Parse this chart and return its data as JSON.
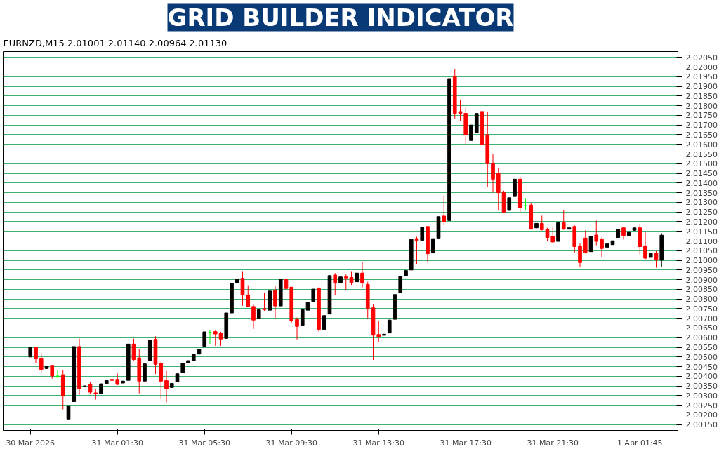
{
  "chart_data": {
    "type": "candlestick",
    "title": "GRID BUILDER INDICATOR",
    "subtitle": "EURNZD,M15  2.01001 2.01140 2.00964 2.01130",
    "categories": [
      "30 Mar 2026",
      null,
      null,
      null,
      null,
      null,
      null,
      null,
      null,
      null,
      null,
      null,
      null,
      null,
      null,
      null,
      "31 Mar 01:30",
      null,
      null,
      null,
      null,
      null,
      null,
      null,
      null,
      null,
      null,
      null,
      null,
      null,
      null,
      null,
      "31 Mar 05:30",
      null,
      null,
      null,
      null,
      null,
      null,
      null,
      null,
      null,
      null,
      null,
      null,
      null,
      null,
      null,
      "31 Mar 09:30",
      null,
      null,
      null,
      null,
      null,
      null,
      null,
      null,
      null,
      null,
      null,
      null,
      null,
      null,
      null,
      "31 Mar 13:30",
      null,
      null,
      null,
      null,
      null,
      null,
      null,
      null,
      null,
      null,
      null,
      null,
      null,
      null,
      null,
      "31 Mar 17:30",
      null,
      null,
      null,
      null,
      null,
      null,
      null,
      null,
      null,
      null,
      null,
      null,
      null,
      null,
      null,
      "31 Mar 21:30",
      null,
      null,
      null,
      null,
      null,
      null,
      null,
      null,
      null,
      null,
      null,
      null,
      null,
      null,
      null,
      "1 Apr 01:45",
      null,
      null,
      null,
      null
    ],
    "ohlc": [
      [
        2.005,
        2.0055,
        2.005,
        2.0055
      ],
      [
        2.0055,
        2.0055,
        2.0047,
        2.0049
      ],
      [
        2.0049,
        2.0052,
        2.0042,
        2.00435
      ],
      [
        2.0044,
        2.00454,
        2.0044,
        2.00454
      ],
      [
        2.00457,
        2.00457,
        2.00388,
        2.00402
      ],
      [
        2.004,
        2.0043,
        2.00391,
        2.004
      ],
      [
        2.00408,
        2.0043,
        2.00229,
        2.00301
      ],
      [
        2.00179,
        2.00248,
        2.00179,
        2.00248
      ],
      [
        2.00269,
        2.00554,
        2.00269,
        2.00554
      ],
      [
        2.00554,
        2.00595,
        2.00304,
        2.00335
      ],
      [
        2.0035,
        2.0035,
        2.0035,
        2.0035
      ],
      [
        2.00358,
        2.00371,
        2.00308,
        2.00318
      ],
      [
        2.00314,
        2.00334,
        2.00279,
        2.00309
      ],
      [
        2.00309,
        2.00361,
        2.00309,
        2.00361
      ],
      [
        2.00362,
        2.00378,
        2.00362,
        2.00378
      ],
      [
        2.00384,
        2.00411,
        2.00321,
        2.00379
      ],
      [
        2.00384,
        2.00414,
        2.00354,
        2.00358
      ],
      [
        2.00365,
        2.00375,
        2.00365,
        2.00375
      ],
      [
        2.00379,
        2.00567,
        2.00379,
        2.00567
      ],
      [
        2.00567,
        2.00595,
        2.00482,
        2.00487
      ],
      [
        2.00495,
        2.00541,
        2.00312,
        2.00375
      ],
      [
        2.00375,
        2.00464,
        2.00375,
        2.00464
      ],
      [
        2.00482,
        2.00587,
        2.00482,
        2.00587
      ],
      [
        2.00591,
        2.00607,
        2.00412,
        2.00462
      ],
      [
        2.00467,
        2.00476,
        2.00282,
        2.00375
      ],
      [
        2.00378,
        2.00428,
        2.00265,
        2.00335
      ],
      [
        2.00342,
        2.00363,
        2.00342,
        2.00363
      ],
      [
        2.00372,
        2.00413,
        2.00372,
        2.00413
      ],
      [
        2.00419,
        2.00467,
        2.00419,
        2.00467
      ],
      [
        2.00469,
        2.00481,
        2.00469,
        2.00481
      ],
      [
        2.00481,
        2.00514,
        2.00481,
        2.00514
      ],
      [
        2.00515,
        2.0054,
        2.00515,
        2.0054
      ],
      [
        2.00555,
        2.0063,
        2.00555,
        2.0063
      ],
      [
        2.00627,
        2.0064,
        2.00566,
        2.00627
      ],
      [
        2.00631,
        2.0064,
        2.00558,
        2.00619
      ],
      [
        2.00621,
        2.0063,
        2.00558,
        2.00593
      ],
      [
        2.00596,
        2.00728,
        2.00596,
        2.00728
      ],
      [
        2.00728,
        2.00881,
        2.00728,
        2.00881
      ],
      [
        2.00884,
        2.00904,
        2.00884,
        2.00904
      ],
      [
        2.00907,
        2.00944,
        2.00765,
        2.00822
      ],
      [
        2.00821,
        2.00871,
        2.00759,
        2.00759
      ],
      [
        2.00761,
        2.0077,
        2.00645,
        2.00691
      ],
      [
        2.007,
        2.00744,
        2.007,
        2.00744
      ],
      [
        2.0075,
        2.00831,
        2.00739,
        2.00745
      ],
      [
        2.00742,
        2.00841,
        2.00742,
        2.00841
      ],
      [
        2.00846,
        2.00868,
        2.007,
        2.00764
      ],
      [
        2.00764,
        2.00902,
        2.00764,
        2.00902
      ],
      [
        2.009,
        2.00904,
        2.00824,
        2.00854
      ],
      [
        2.00861,
        2.00861,
        2.00679,
        2.00688
      ],
      [
        2.00694,
        2.00704,
        2.00591,
        2.00658
      ],
      [
        2.00664,
        2.00748,
        2.00664,
        2.00748
      ],
      [
        2.00742,
        2.00784,
        2.00742,
        2.00784
      ],
      [
        2.00788,
        2.00851,
        2.00788,
        2.00851
      ],
      [
        2.00854,
        2.00861,
        2.00632,
        2.00642
      ],
      [
        2.00642,
        2.00714,
        2.00642,
        2.00714
      ],
      [
        2.00722,
        2.00921,
        2.00722,
        2.00921
      ],
      [
        2.00924,
        2.00934,
        2.00819,
        2.00882
      ],
      [
        2.00884,
        2.00914,
        2.00884,
        2.00914
      ],
      [
        2.00914,
        2.00927,
        2.00848,
        2.00909
      ],
      [
        2.00911,
        2.00944,
        2.00873,
        2.00885
      ],
      [
        2.00889,
        2.00934,
        2.00889,
        2.00934
      ],
      [
        2.00934,
        2.0099,
        2.0086,
        2.00882
      ],
      [
        2.00875,
        2.00889,
        2.007,
        2.00752
      ],
      [
        2.00754,
        2.00771,
        2.00485,
        2.00613
      ],
      [
        2.00616,
        2.00685,
        2.00578,
        2.00605
      ],
      [
        2.00612,
        2.00618,
        2.00612,
        2.00618
      ],
      [
        2.00624,
        2.00691,
        2.00624,
        2.00691
      ],
      [
        2.00695,
        2.00823,
        2.00695,
        2.00823
      ],
      [
        2.00833,
        2.00917,
        2.00833,
        2.00917
      ],
      [
        2.0092,
        2.00947,
        2.0092,
        2.00947
      ],
      [
        2.0095,
        2.01108,
        2.0095,
        2.01108
      ],
      [
        2.01112,
        2.01122,
        2.0098,
        2.01103
      ],
      [
        2.01103,
        2.01172,
        2.01103,
        2.01172
      ],
      [
        2.01175,
        2.01175,
        2.00991,
        2.01034
      ],
      [
        2.01038,
        2.01112,
        2.01038,
        2.01112
      ],
      [
        2.01115,
        2.01226,
        2.01115,
        2.01226
      ],
      [
        2.01229,
        2.0133,
        2.01185,
        2.01199
      ],
      [
        2.01206,
        2.0194,
        2.01206,
        2.0194
      ],
      [
        2.0195,
        2.0199,
        2.0173,
        2.0176
      ],
      [
        2.0177,
        2.0183,
        2.0172,
        2.0176
      ],
      [
        2.0176,
        2.0179,
        2.016,
        2.0165
      ],
      [
        2.0162,
        2.017,
        2.0162,
        2.017
      ],
      [
        2.0166,
        2.0176,
        2.0166,
        2.0176
      ],
      [
        2.0177,
        2.0178,
        2.0155,
        2.016
      ],
      [
        2.0165,
        2.0177,
        2.0138,
        2.015
      ],
      [
        2.015,
        2.0155,
        2.0135,
        2.0142
      ],
      [
        2.0145,
        2.0148,
        2.0126,
        2.0135
      ],
      [
        2.0135,
        2.0136,
        2.01246,
        2.0125
      ],
      [
        2.01258,
        2.01324,
        2.01258,
        2.01324
      ],
      [
        2.0133,
        2.0142,
        2.0133,
        2.0142
      ],
      [
        2.0142,
        2.0143,
        2.01251,
        2.01272
      ],
      [
        2.01282,
        2.01322,
        2.01261,
        2.01282
      ],
      [
        2.01286,
        2.01294,
        2.01161,
        2.01161
      ],
      [
        2.01168,
        2.01191,
        2.01168,
        2.01191
      ],
      [
        2.01191,
        2.01231,
        2.01154,
        2.01158
      ],
      [
        2.01161,
        2.01168,
        2.01098,
        2.01118
      ],
      [
        2.01125,
        2.01175,
        2.01089,
        2.01095
      ],
      [
        2.01098,
        2.01195,
        2.01098,
        2.01195
      ],
      [
        2.01195,
        2.01261,
        2.01158,
        2.01161
      ],
      [
        2.01161,
        2.01168,
        2.01161,
        2.01168
      ],
      [
        2.01175,
        2.01181,
        2.01038,
        2.01071
      ],
      [
        2.01075,
        2.01091,
        2.00965,
        2.00988
      ],
      [
        2.01115,
        2.01155,
        2.01035,
        2.01041
      ],
      [
        2.01045,
        2.01125,
        2.01045,
        2.01125
      ],
      [
        2.01131,
        2.01205,
        2.01078,
        2.01098
      ],
      [
        2.01108,
        2.01118,
        2.01015,
        2.01061
      ],
      [
        2.01068,
        2.01085,
        2.01068,
        2.01085
      ],
      [
        2.01081,
        2.01101,
        2.01081,
        2.01101
      ],
      [
        2.01118,
        2.01161,
        2.01118,
        2.01161
      ],
      [
        2.01168,
        2.01171,
        2.01108,
        2.01128
      ],
      [
        2.01128,
        2.01148,
        2.01128,
        2.01148
      ],
      [
        2.01155,
        2.01168,
        2.01155,
        2.01168
      ],
      [
        2.01168,
        2.01188,
        2.01031,
        2.01071
      ],
      [
        2.01075,
        2.01145,
        2.01005,
        2.01011
      ],
      [
        2.01015,
        2.01035,
        2.01015,
        2.01035
      ],
      [
        2.01038,
        2.01048,
        2.00962,
        2.01005
      ],
      [
        2.01001,
        2.0114,
        2.00964,
        2.0113
      ]
    ],
    "colors": [
      "#000000",
      "#ff0000",
      "#ff0000",
      "#000000",
      "#ff0000",
      "#00ff00",
      "#ff0000",
      "#000000",
      "#000000",
      "#ff0000",
      "#000000",
      "#ff0000",
      "#ff0000",
      "#000000",
      "#000000",
      "#ff0000",
      "#ff0000",
      "#000000",
      "#000000",
      "#ff0000",
      "#ff0000",
      "#000000",
      "#000000",
      "#ff0000",
      "#ff0000",
      "#ff0000",
      "#000000",
      "#000000",
      "#000000",
      "#000000",
      "#000000",
      "#000000",
      "#000000",
      "#00ff00",
      "#ff0000",
      "#ff0000",
      "#000000",
      "#000000",
      "#000000",
      "#ff0000",
      "#ff0000",
      "#ff0000",
      "#000000",
      "#ff0000",
      "#000000",
      "#ff0000",
      "#000000",
      "#ff0000",
      "#ff0000",
      "#ff0000",
      "#000000",
      "#000000",
      "#000000",
      "#ff0000",
      "#000000",
      "#000000",
      "#ff0000",
      "#000000",
      "#ff0000",
      "#ff0000",
      "#000000",
      "#ff0000",
      "#ff0000",
      "#ff0000",
      "#ff0000",
      "#000000",
      "#000000",
      "#000000",
      "#000000",
      "#000000",
      "#000000",
      "#ff0000",
      "#000000",
      "#ff0000",
      "#000000",
      "#000000",
      "#ff0000",
      "#000000",
      "#ff0000",
      "#ff0000",
      "#ff0000",
      "#000000",
      "#000000",
      "#ff0000",
      "#ff0000",
      "#ff0000",
      "#ff0000",
      "#ff0000",
      "#000000",
      "#000000",
      "#ff0000",
      "#00ff00",
      "#ff0000",
      "#000000",
      "#ff0000",
      "#ff0000",
      "#ff0000",
      "#000000",
      "#ff0000",
      "#000000",
      "#ff0000",
      "#ff0000",
      "#ff0000",
      "#000000",
      "#ff0000",
      "#ff0000",
      "#000000",
      "#000000",
      "#000000",
      "#ff0000",
      "#000000",
      "#000000",
      "#ff0000",
      "#ff0000",
      "#000000",
      "#ff0000",
      "#000000"
    ],
    "ylim": [
      2.0012,
      2.0208
    ],
    "yticks": [
      {
        "value": 2.0015,
        "label": "2.00150"
      },
      {
        "value": 2.002,
        "label": "2.00200"
      },
      {
        "value": 2.0025,
        "label": "2.00250"
      },
      {
        "value": 2.003,
        "label": "2.00300"
      },
      {
        "value": 2.0035,
        "label": "2.00350"
      },
      {
        "value": 2.004,
        "label": "2.00400"
      },
      {
        "value": 2.0045,
        "label": "2.00450"
      },
      {
        "value": 2.005,
        "label": "2.00500"
      },
      {
        "value": 2.0055,
        "label": "2.00550"
      },
      {
        "value": 2.006,
        "label": "2.00600"
      },
      {
        "value": 2.0065,
        "label": "2.00650"
      },
      {
        "value": 2.007,
        "label": "2.00700"
      },
      {
        "value": 2.0075,
        "label": "2.00750"
      },
      {
        "value": 2.008,
        "label": "2.00800"
      },
      {
        "value": 2.0085,
        "label": "2.00850"
      },
      {
        "value": 2.009,
        "label": "2.00900"
      },
      {
        "value": 2.0095,
        "label": "2.00950"
      },
      {
        "value": 2.01,
        "label": "2.01000"
      },
      {
        "value": 2.0105,
        "label": "2.01050"
      },
      {
        "value": 2.011,
        "label": "2.01100"
      },
      {
        "value": 2.0115,
        "label": "2.01150"
      },
      {
        "value": 2.012,
        "label": "2.01200"
      },
      {
        "value": 2.0125,
        "label": "2.01250"
      },
      {
        "value": 2.013,
        "label": "2.01300"
      },
      {
        "value": 2.0135,
        "label": "2.01350"
      },
      {
        "value": 2.014,
        "label": "2.01400"
      },
      {
        "value": 2.0145,
        "label": "2.01450"
      },
      {
        "value": 2.015,
        "label": "2.01500"
      },
      {
        "value": 2.0155,
        "label": "2.01550"
      },
      {
        "value": 2.016,
        "label": "2.01600"
      },
      {
        "value": 2.0165,
        "label": "2.01650"
      },
      {
        "value": 2.017,
        "label": "2.01700"
      },
      {
        "value": 2.0175,
        "label": "2.01750"
      },
      {
        "value": 2.018,
        "label": "2.01800"
      },
      {
        "value": 2.0185,
        "label": "2.01850"
      },
      {
        "value": 2.019,
        "label": "2.01900"
      },
      {
        "value": 2.0195,
        "label": "2.01950"
      },
      {
        "value": 2.02,
        "label": "2.02000"
      },
      {
        "value": 2.0205,
        "label": "2.02050"
      }
    ],
    "grid": "y"
  }
}
